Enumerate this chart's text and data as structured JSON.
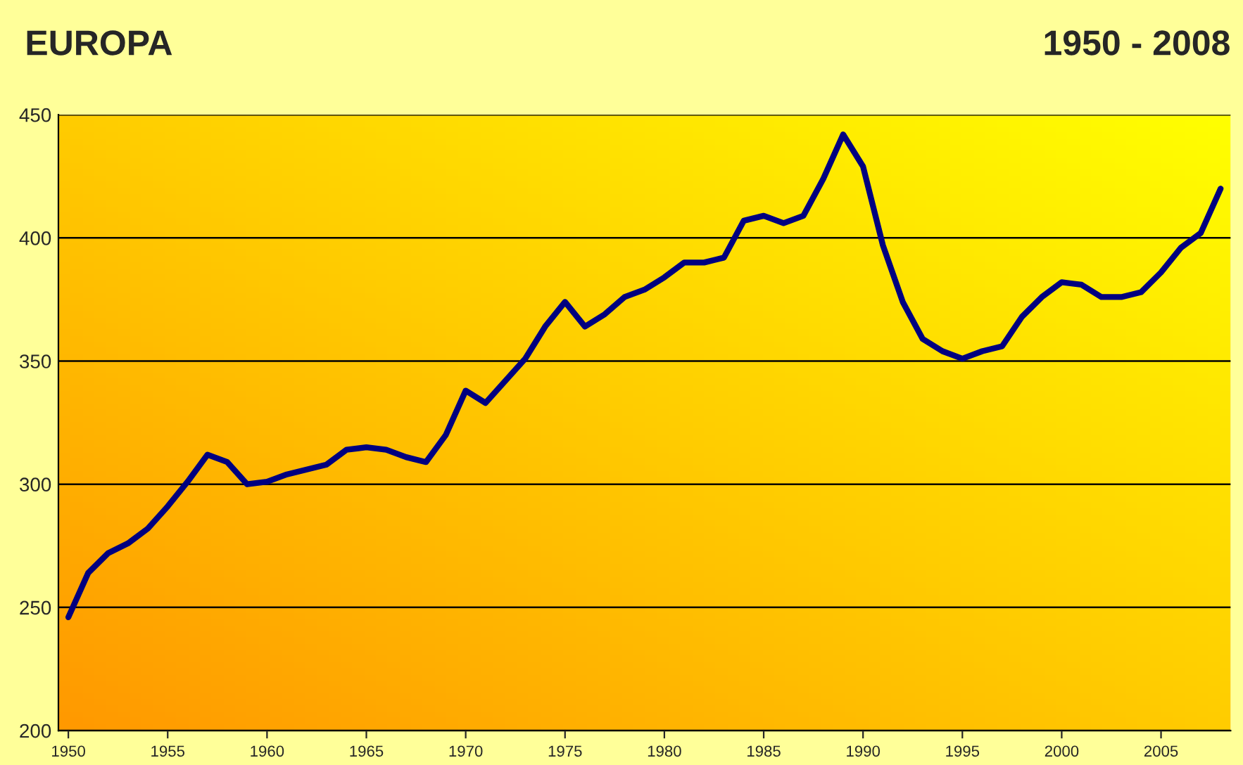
{
  "chart_data": {
    "type": "line",
    "title": "EUROPA",
    "subtitle": "1950 - 2008",
    "x": [
      1950,
      1951,
      1952,
      1953,
      1954,
      1955,
      1956,
      1957,
      1958,
      1959,
      1960,
      1961,
      1962,
      1963,
      1964,
      1965,
      1966,
      1967,
      1968,
      1969,
      1970,
      1971,
      1972,
      1973,
      1974,
      1975,
      1976,
      1977,
      1978,
      1979,
      1980,
      1981,
      1982,
      1983,
      1984,
      1985,
      1986,
      1987,
      1988,
      1989,
      1990,
      1991,
      1992,
      1993,
      1994,
      1995,
      1996,
      1997,
      1998,
      1999,
      2000,
      2001,
      2002,
      2003,
      2004,
      2005,
      2006,
      2007,
      2008
    ],
    "series": [
      {
        "color": "#000080",
        "values": [
          246,
          264,
          272,
          276,
          282,
          291,
          301,
          312,
          309,
          300,
          301,
          304,
          306,
          308,
          314,
          315,
          314,
          311,
          309,
          320,
          338,
          333,
          342,
          351,
          364,
          374,
          364,
          369,
          376,
          379,
          384,
          390,
          390,
          392,
          407,
          409,
          406,
          409,
          424,
          442,
          429,
          397,
          374,
          359,
          354,
          351,
          354,
          356,
          368,
          376,
          382,
          381,
          376,
          376,
          378,
          386,
          396,
          402,
          420
        ]
      }
    ],
    "xlim": [
      1949.5,
      2008.5
    ],
    "xticks": [
      1950,
      1955,
      1960,
      1965,
      1970,
      1975,
      1980,
      1985,
      1990,
      1995,
      2000,
      2005
    ],
    "ylim": [
      200,
      450
    ],
    "yticks": [
      200,
      250,
      300,
      350,
      400,
      450
    ],
    "grid": "y",
    "legend": false,
    "marker": "none",
    "line_style": "solid"
  }
}
